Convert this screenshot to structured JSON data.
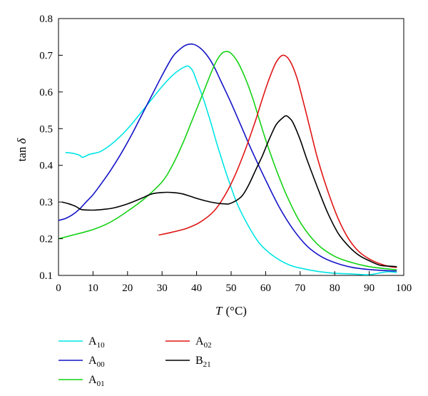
{
  "chart_data": {
    "type": "line",
    "xlabel": "T (°C)",
    "xlabel_var": "T",
    "xlabel_unit": "(°C)",
    "ylabel": "tan δ",
    "ylabel_var": "δ",
    "ylabel_prefix": "tan",
    "xlim": [
      0,
      100
    ],
    "ylim": [
      0.1,
      0.8
    ],
    "x_ticks": [
      "0",
      "10",
      "20",
      "30",
      "40",
      "50",
      "60",
      "70",
      "80",
      "90",
      "100"
    ],
    "y_ticks": [
      "0.1",
      "0.2",
      "0.3",
      "0.4",
      "0.5",
      "0.6",
      "0.7",
      "0.8"
    ],
    "grid": false,
    "legend_position": "bottom",
    "series": [
      {
        "name": "A10",
        "name_main": "A",
        "name_sub": "10",
        "color": "#00e5e5",
        "x": [
          2,
          4,
          6,
          7,
          9,
          12,
          15,
          18,
          21,
          24,
          27,
          30,
          33,
          35,
          37,
          38,
          39,
          40,
          42,
          44,
          46,
          48,
          50,
          52,
          55,
          58,
          61,
          64,
          67,
          70,
          75,
          80,
          85,
          90,
          95,
          98
        ],
        "y": [
          0.435,
          0.433,
          0.428,
          0.422,
          0.43,
          0.437,
          0.455,
          0.48,
          0.51,
          0.545,
          0.58,
          0.615,
          0.645,
          0.66,
          0.67,
          0.668,
          0.655,
          0.63,
          0.58,
          0.52,
          0.455,
          0.395,
          0.34,
          0.29,
          0.235,
          0.19,
          0.162,
          0.142,
          0.128,
          0.12,
          0.111,
          0.106,
          0.104,
          0.102,
          0.11,
          0.108
        ]
      },
      {
        "name": "A00",
        "name_main": "A",
        "name_sub": "00",
        "color": "#1414c8",
        "x": [
          0,
          2,
          4,
          6,
          8,
          10,
          12,
          15,
          18,
          21,
          24,
          27,
          30,
          33,
          35,
          37,
          39,
          41,
          43,
          45,
          47,
          50,
          53,
          56,
          60,
          64,
          68,
          72,
          76,
          80,
          85,
          90,
          95,
          98
        ],
        "y": [
          0.25,
          0.255,
          0.265,
          0.28,
          0.3,
          0.32,
          0.345,
          0.385,
          0.43,
          0.48,
          0.535,
          0.59,
          0.645,
          0.695,
          0.715,
          0.728,
          0.73,
          0.72,
          0.7,
          0.67,
          0.63,
          0.57,
          0.505,
          0.44,
          0.36,
          0.285,
          0.225,
          0.18,
          0.152,
          0.135,
          0.122,
          0.116,
          0.113,
          0.112
        ]
      },
      {
        "name": "A01",
        "name_main": "A",
        "name_sub": "01",
        "color": "#14d214",
        "x": [
          0,
          5,
          10,
          15,
          20,
          25,
          30,
          33,
          36,
          39,
          42,
          45,
          47,
          48.5,
          50,
          52,
          54,
          56,
          58,
          60,
          63,
          66,
          70,
          75,
          80,
          85,
          90,
          95,
          98
        ],
        "y": [
          0.2,
          0.212,
          0.225,
          0.245,
          0.275,
          0.31,
          0.355,
          0.4,
          0.46,
          0.53,
          0.6,
          0.67,
          0.702,
          0.71,
          0.705,
          0.68,
          0.64,
          0.59,
          0.53,
          0.47,
          0.39,
          0.32,
          0.245,
          0.185,
          0.152,
          0.135,
          0.124,
          0.118,
          0.115
        ]
      },
      {
        "name": "A02",
        "name_main": "A",
        "name_sub": "02",
        "color": "#e01414",
        "x": [
          29,
          33,
          37,
          41,
          45,
          48,
          51,
          54,
          57,
          59,
          61,
          63,
          65,
          67,
          69,
          71,
          73,
          75,
          78,
          81,
          84,
          87,
          90,
          93,
          96,
          98
        ],
        "y": [
          0.21,
          0.218,
          0.228,
          0.245,
          0.275,
          0.315,
          0.37,
          0.44,
          0.52,
          0.58,
          0.635,
          0.68,
          0.7,
          0.685,
          0.64,
          0.57,
          0.495,
          0.42,
          0.33,
          0.255,
          0.2,
          0.165,
          0.145,
          0.132,
          0.124,
          0.122
        ]
      },
      {
        "name": "B21",
        "name_main": "B",
        "name_sub": "21",
        "color": "#000000",
        "x": [
          1,
          3,
          5,
          6,
          7,
          10,
          13,
          16,
          20,
          24,
          27,
          30,
          33,
          36,
          40,
          44,
          48,
          50,
          53,
          55,
          57,
          59,
          61,
          63,
          65,
          66,
          67,
          68,
          70,
          72,
          75,
          78,
          81,
          84,
          87,
          90,
          93,
          96,
          98
        ],
        "y": [
          0.3,
          0.295,
          0.288,
          0.282,
          0.279,
          0.278,
          0.28,
          0.284,
          0.295,
          0.31,
          0.322,
          0.326,
          0.326,
          0.322,
          0.31,
          0.3,
          0.295,
          0.297,
          0.315,
          0.345,
          0.385,
          0.425,
          0.47,
          0.51,
          0.53,
          0.535,
          0.528,
          0.515,
          0.47,
          0.415,
          0.34,
          0.27,
          0.215,
          0.18,
          0.155,
          0.14,
          0.128,
          0.125,
          0.124
        ]
      }
    ]
  }
}
